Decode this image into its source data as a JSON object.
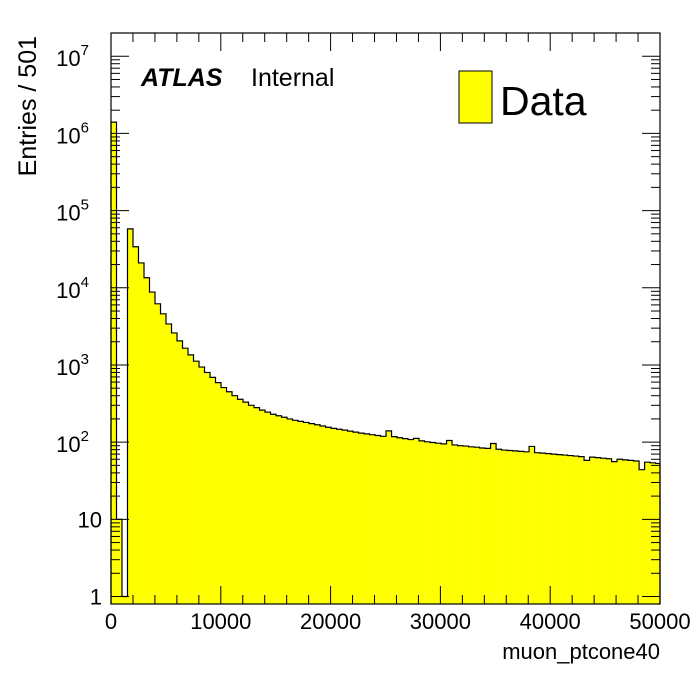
{
  "chart_data": {
    "type": "bar",
    "title": "",
    "xlabel": "muon_ptcone40",
    "ylabel": "Entries / 501",
    "x_range": [
      0,
      50000
    ],
    "ylim": [
      0.8,
      20000000
    ],
    "y_scale": "log",
    "bin_width": 501,
    "grid": false,
    "legend_position": "top-right",
    "legend": [
      {
        "label": "Data",
        "color": "#ffff00"
      }
    ],
    "annotations": {
      "atlas": "ATLAS",
      "internal": "Internal"
    },
    "x_ticks": [
      {
        "value": 0,
        "label": "0"
      },
      {
        "value": 10000,
        "label": "10000"
      },
      {
        "value": 20000,
        "label": "20000"
      },
      {
        "value": 30000,
        "label": "30000"
      },
      {
        "value": 40000,
        "label": "40000"
      },
      {
        "value": 50000,
        "label": "50000"
      }
    ],
    "y_ticks": [
      {
        "value": 1,
        "base": "1",
        "exp": ""
      },
      {
        "value": 10,
        "base": "10",
        "exp": ""
      },
      {
        "value": 100,
        "base": "10",
        "exp": "2"
      },
      {
        "value": 1000,
        "base": "10",
        "exp": "3"
      },
      {
        "value": 10000,
        "base": "10",
        "exp": "4"
      },
      {
        "value": 100000,
        "base": "10",
        "exp": "5"
      },
      {
        "value": 1000000,
        "base": "10",
        "exp": "6"
      },
      {
        "value": 10000000,
        "base": "10",
        "exp": "7"
      }
    ],
    "series": [
      {
        "fill_color": "#ffff00",
        "x_bins": [
          0,
          501,
          1002,
          1503,
          2004,
          2505,
          3006,
          3507,
          4008,
          4509,
          5010,
          5511,
          6012,
          6513,
          7014,
          7515,
          8016,
          8517,
          9018,
          9519,
          10020,
          10521,
          11022,
          11523,
          12024,
          12525,
          13026,
          13527,
          14028,
          14529,
          15030,
          15531,
          16032,
          16533,
          17034,
          17535,
          18036,
          18537,
          19038,
          19539,
          20040,
          20541,
          21042,
          21543,
          22044,
          22545,
          23046,
          23547,
          24048,
          24549,
          25050,
          25551,
          26052,
          26553,
          27054,
          27555,
          28056,
          28557,
          29058,
          29559,
          30060,
          30561,
          31062,
          31563,
          32064,
          32565,
          33066,
          33567,
          34068,
          34569,
          35070,
          35571,
          36072,
          36573,
          37074,
          37575,
          38076,
          38577,
          39078,
          39579,
          40080,
          40581,
          41082,
          41583,
          42084,
          42585,
          43086,
          43587,
          44088,
          44589,
          45090,
          45591,
          46092,
          46593,
          47094,
          47595,
          48096,
          48597,
          49098,
          49599
        ],
        "values": [
          1400000,
          10,
          1,
          58000,
          34000,
          21000,
          13500,
          8800,
          6200,
          4600,
          3400,
          2600,
          2050,
          1650,
          1350,
          1120,
          940,
          800,
          690,
          590,
          510,
          450,
          400,
          360,
          330,
          300,
          280,
          260,
          245,
          230,
          220,
          210,
          200,
          192,
          186,
          180,
          174,
          168,
          162,
          156,
          151,
          147,
          143,
          139,
          135,
          131,
          128,
          125,
          122,
          119,
          140,
          118,
          114,
          111,
          108,
          112,
          104,
          101,
          99,
          97,
          95,
          105,
          92,
          90,
          89,
          87,
          86,
          84,
          83,
          96,
          81,
          79,
          78,
          77,
          76,
          75,
          88,
          73,
          72,
          71,
          70,
          69,
          68,
          67,
          66,
          65,
          58,
          64,
          63,
          62,
          61,
          56,
          60,
          59,
          58,
          57,
          44,
          55,
          54,
          53
        ]
      }
    ]
  }
}
